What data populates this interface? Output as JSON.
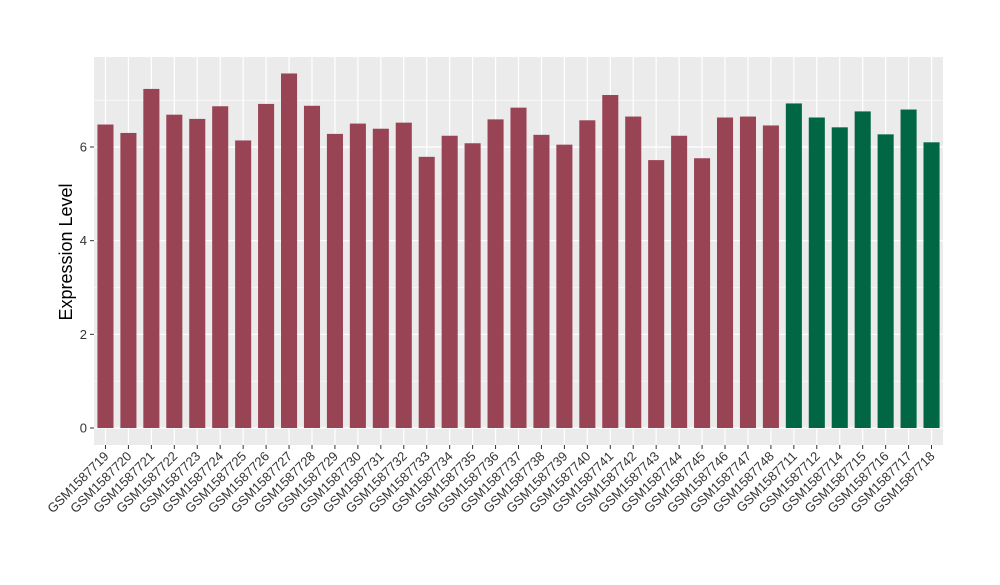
{
  "chart_data": {
    "type": "bar",
    "title": "",
    "xlabel": "",
    "ylabel": "Expression Level",
    "ylim": [
      0,
      7.9
    ],
    "yticks": [
      0,
      2,
      4,
      6
    ],
    "grid": true,
    "legend": "none",
    "background_color": "#EBEBEB",
    "grid_color": "#FFFFFF",
    "group_colors": {
      "group1": "#994455",
      "group2": "#006644"
    },
    "categories": [
      "GSM1587719",
      "GSM1587720",
      "GSM1587721",
      "GSM1587722",
      "GSM1587723",
      "GSM1587724",
      "GSM1587725",
      "GSM1587726",
      "GSM1587727",
      "GSM1587728",
      "GSM1587729",
      "GSM1587730",
      "GSM1587731",
      "GSM1587732",
      "GSM1587733",
      "GSM1587734",
      "GSM1587735",
      "GSM1587736",
      "GSM1587737",
      "GSM1587738",
      "GSM1587739",
      "GSM1587740",
      "GSM1587741",
      "GSM1587742",
      "GSM1587743",
      "GSM1587744",
      "GSM1587745",
      "GSM1587746",
      "GSM1587747",
      "GSM1587748",
      "GSM1587711",
      "GSM1587712",
      "GSM1587714",
      "GSM1587715",
      "GSM1587716",
      "GSM1587717",
      "GSM1587718"
    ],
    "values": [
      6.48,
      6.3,
      7.24,
      6.69,
      6.6,
      6.87,
      6.14,
      6.92,
      7.57,
      6.88,
      6.28,
      6.5,
      6.39,
      6.52,
      5.79,
      6.24,
      6.08,
      6.59,
      6.84,
      6.26,
      6.05,
      6.57,
      7.11,
      6.65,
      5.72,
      6.24,
      5.76,
      6.63,
      6.65,
      6.46,
      6.93,
      6.63,
      6.42,
      6.76,
      6.27,
      6.8,
      6.1
    ],
    "groups": [
      "group1",
      "group1",
      "group1",
      "group1",
      "group1",
      "group1",
      "group1",
      "group1",
      "group1",
      "group1",
      "group1",
      "group1",
      "group1",
      "group1",
      "group1",
      "group1",
      "group1",
      "group1",
      "group1",
      "group1",
      "group1",
      "group1",
      "group1",
      "group1",
      "group1",
      "group1",
      "group1",
      "group1",
      "group1",
      "group1",
      "group2",
      "group2",
      "group2",
      "group2",
      "group2",
      "group2",
      "group2"
    ]
  }
}
